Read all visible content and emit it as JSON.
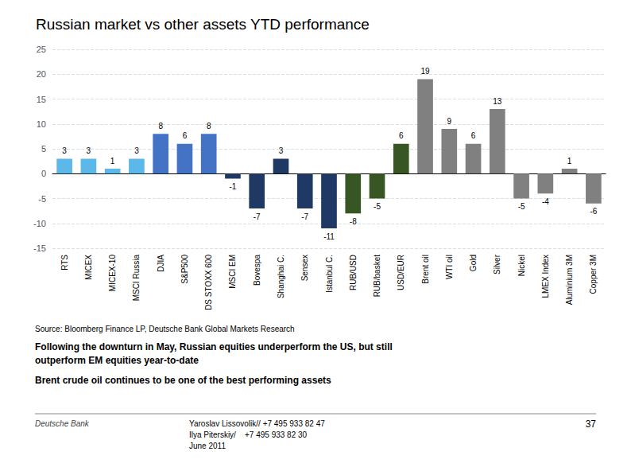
{
  "chart_data": {
    "type": "bar",
    "title": "Russian market vs other assets YTD performance",
    "categories": [
      "RTS",
      "MICEX",
      "MICEX-10",
      "MSCI Russia",
      "DJIA",
      "S&P500",
      "DS STOXX 600",
      "MSCI EM",
      "Bovespa",
      "Shanghai C.",
      "Sensex",
      "Istanbul C.",
      "RUB/USD",
      "RUB/basket",
      "USD/EUR",
      "Brent oil",
      "WTI oil",
      "Gold",
      "Silver",
      "Nickel",
      "LMEX Index",
      "Aluminium 3M",
      "Copper 3M"
    ],
    "values": [
      3,
      3,
      1,
      3,
      8,
      6,
      8,
      -1,
      -7,
      3,
      -7,
      -11,
      -8,
      -5,
      6,
      19,
      9,
      6,
      13,
      -5,
      -4,
      1,
      -6
    ],
    "colors": [
      "#5BB8E8",
      "#5BB8E8",
      "#5BB8E8",
      "#5BB8E8",
      "#4472C4",
      "#4472C4",
      "#4472C4",
      "#1F3864",
      "#1F3864",
      "#1F3864",
      "#1F3864",
      "#1F3864",
      "#375623",
      "#375623",
      "#375623",
      "#808080",
      "#808080",
      "#808080",
      "#808080",
      "#808080",
      "#808080",
      "#808080",
      "#808080"
    ],
    "ylim": [
      -15,
      25
    ],
    "yticks": [
      -15,
      -10,
      -5,
      0,
      5,
      10,
      15,
      20,
      25
    ],
    "grid": true,
    "data_labels": true,
    "source": "Source: Bloomberg Finance LP, Deutsche Bank Global Markets Research",
    "annotations": [
      "Following the downturn in May, Russian equities underperform the US, but still",
      "outperform EM equities year-to-date",
      "Brent crude oil continues to be one of the best performing assets",
      "Deutsche Bank",
      "Yaroslav Lissovolik// +7 495 933 82 47",
      "Ilya Piterskiy/    +7 495 933 82 30",
      "June 2011",
      "37"
    ]
  }
}
